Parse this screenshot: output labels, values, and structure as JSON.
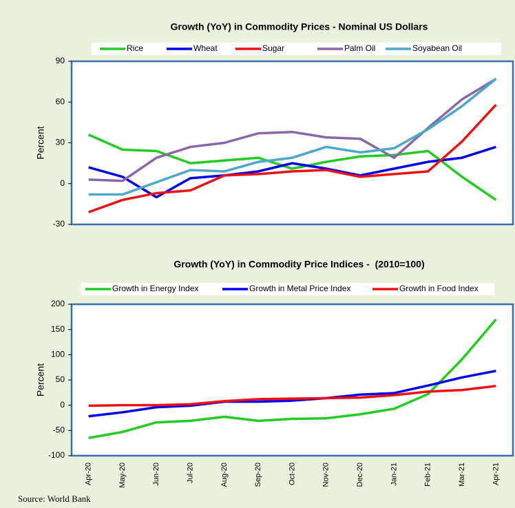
{
  "chart_data": [
    {
      "type": "line",
      "title": "Growth (YoY) in Commodity Prices - Nominal US Dollars",
      "y_label": "Percent",
      "categories": [
        null,
        null,
        null,
        null,
        null,
        null,
        null,
        null,
        null,
        null,
        null,
        null,
        null
      ],
      "series": [
        {
          "name": "Rice",
          "color": "#22cc22",
          "values": [
            36,
            25,
            24,
            15,
            17,
            19,
            11,
            16,
            20,
            21,
            24,
            5,
            -12
          ]
        },
        {
          "name": "Wheat",
          "color": "#0000ee",
          "values": [
            12,
            5,
            -10,
            4,
            6,
            9,
            15,
            11,
            6,
            11,
            16,
            19,
            27
          ]
        },
        {
          "name": "Sugar",
          "color": "#ee1111",
          "values": [
            -21,
            -12,
            -7,
            -5,
            6,
            7,
            9,
            10,
            5,
            7,
            9,
            31,
            58
          ]
        },
        {
          "name": "Palm Oil",
          "color": "#8866aa",
          "values": [
            3,
            2,
            19,
            27,
            30,
            37,
            38,
            34,
            33,
            19,
            41,
            62,
            77
          ]
        },
        {
          "name": "Soyabean Oil",
          "color": "#4aa8c8",
          "values": [
            -8,
            -8,
            1,
            10,
            9,
            16,
            19,
            27,
            23,
            26,
            40,
            57,
            77
          ]
        }
      ],
      "ylim": [
        -30,
        90
      ],
      "yticks": [
        -30,
        0,
        30,
        60,
        90
      ],
      "grid": false,
      "legend": "top"
    },
    {
      "type": "line",
      "title": "Growth (YoY) in Commodity Price Indices -  (2010=100)",
      "y_label": "Percent",
      "categories": [
        "Apr-20",
        "May-20",
        "Jun-20",
        "Jul-20",
        "Aug-20",
        "Sep-20",
        "Oct-20",
        "Nov-20",
        "Dec-20",
        "Jan-21",
        "Feb-21",
        "Mar-21",
        "Apr-21"
      ],
      "series": [
        {
          "name": "Growth in Energy Index",
          "color": "#22cc22",
          "values": [
            -65,
            -53,
            -34,
            -31,
            -23,
            -31,
            -27,
            -26,
            -18,
            -7,
            22,
            91,
            170
          ]
        },
        {
          "name": "Growth in Metal Price Index",
          "color": "#0000ee",
          "values": [
            -22,
            -14,
            -4,
            -1,
            7,
            7,
            9,
            14,
            21,
            24,
            39,
            55,
            68
          ]
        },
        {
          "name": "Growth in Food Index",
          "color": "#ee1111",
          "values": [
            -1,
            0,
            0,
            2,
            8,
            12,
            13,
            14,
            15,
            20,
            27,
            30,
            38
          ]
        }
      ],
      "ylim": [
        -100,
        200
      ],
      "yticks": [
        -100,
        -50,
        0,
        50,
        100,
        150,
        200
      ],
      "grid": false,
      "legend": "top"
    }
  ],
  "source": "Source: World Bank"
}
